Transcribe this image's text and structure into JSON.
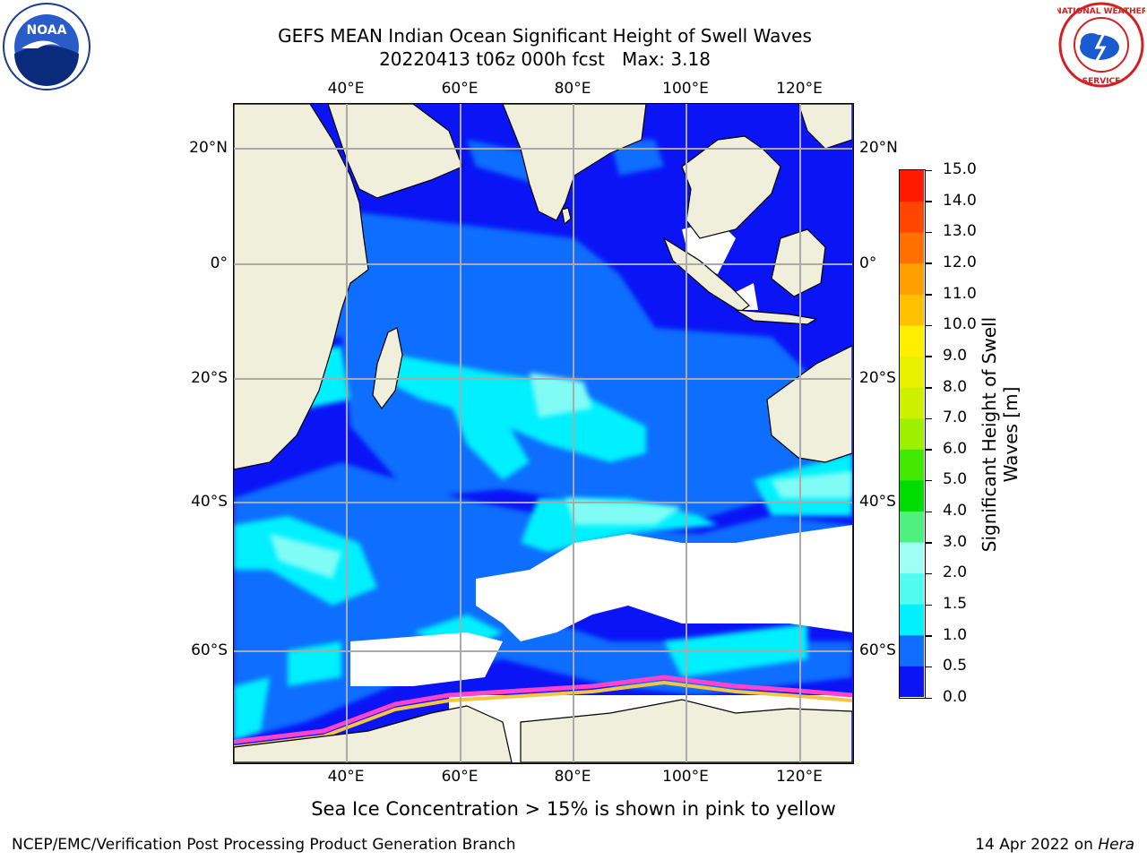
{
  "title": {
    "line1": "GEFS MEAN Indian Ocean Significant Height of Swell Waves",
    "line2": "20220413 t06z 000h fcst   Max: 3.18"
  },
  "map": {
    "lon_labels": [
      "40°E",
      "60°E",
      "80°E",
      "100°E",
      "120°E"
    ],
    "lat_labels": [
      "20°N",
      "0°",
      "20°S",
      "40°S",
      "60°S"
    ],
    "lon_range": [
      20,
      130
    ],
    "lat_range": [
      -73,
      28
    ],
    "colors": {
      "land": "#efefdc",
      "ice_white": "#ffffff",
      "ice_pink": "#ff44cc",
      "ice_yellow": "#f5c542",
      "gridline": "#aaaaaa"
    }
  },
  "colorbar": {
    "label": "Significant Height of Swell Waves [m]",
    "ticks": [
      "0.0",
      "0.5",
      "1.0",
      "1.5",
      "2.0",
      "3.0",
      "4.0",
      "5.0",
      "6.0",
      "7.0",
      "8.0",
      "9.0",
      "10.0",
      "11.0",
      "12.0",
      "13.0",
      "14.0",
      "15.0"
    ],
    "colors": [
      "#0a14f5",
      "#0f6eff",
      "#00f0ff",
      "#50fcf0",
      "#a0fff5",
      "#4ff080",
      "#00dc00",
      "#42e800",
      "#9ef000",
      "#ccf000",
      "#e8f000",
      "#ffee00",
      "#ffc000",
      "#ffa000",
      "#ff7000",
      "#ff4500",
      "#ff1a00"
    ]
  },
  "caption": "Sea Ice Concentration > 15% is shown in pink to yellow",
  "footer": {
    "left": "NCEP/EMC/Verification Post Processing Product Generation Branch",
    "right_date": "14 Apr 2022 on ",
    "right_host": "Hera"
  },
  "logos": {
    "noaa": "NOAA",
    "nws": "NATIONAL WEATHER SERVICE"
  }
}
